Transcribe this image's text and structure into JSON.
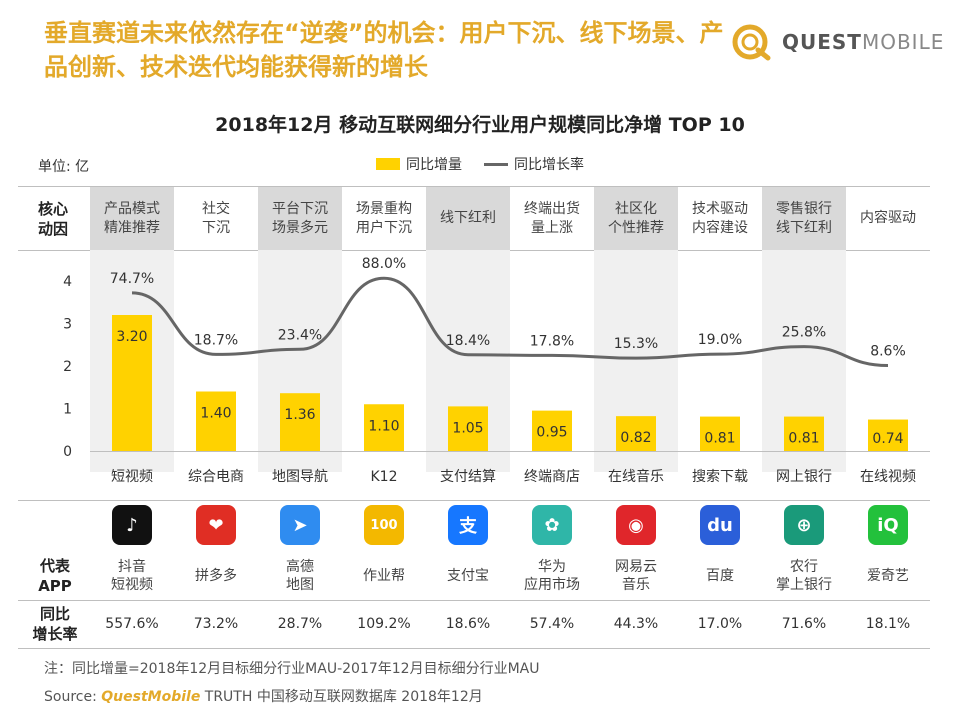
{
  "headline": "垂直赛道未来依然存在“逆袭”的机会：用户下沉、线下场景、产品创新、技术迭代均能获得新的增长",
  "brand": {
    "part1": "QUEST",
    "part2": "MOBILE",
    "color": "#e3a92a"
  },
  "unit_label": "单位: 亿",
  "driver_header": "核心\n动因",
  "app_header": "代表\nAPP",
  "rate_header": "同比\n增长率",
  "drivers": [
    {
      "text": "产品模式\n精准推荐",
      "shaded": true
    },
    {
      "text": "社交\n下沉",
      "shaded": false
    },
    {
      "text": "平台下沉\n场景多元",
      "shaded": true
    },
    {
      "text": "场景重构\n用户下沉",
      "shaded": false
    },
    {
      "text": "线下红利",
      "shaded": true
    },
    {
      "text": "终端出货\n量上涨",
      "shaded": false
    },
    {
      "text": "社区化\n个性推荐",
      "shaded": true
    },
    {
      "text": "技术驱动\n内容建设",
      "shaded": false
    },
    {
      "text": "零售银行\n线下红利",
      "shaded": true
    },
    {
      "text": "内容驱动",
      "shaded": false
    }
  ],
  "apps": [
    {
      "name": "抖音\n短视频",
      "rate": "557.6%",
      "icon": "douyin-icon",
      "color": "#111111",
      "glyph": "♪"
    },
    {
      "name": "拼多多",
      "rate": "73.2%",
      "icon": "pinduoduo-icon",
      "color": "#e02e24",
      "glyph": "❤"
    },
    {
      "name": "高德\n地图",
      "rate": "28.7%",
      "icon": "amap-icon",
      "color": "#2f8cf0",
      "glyph": "➤"
    },
    {
      "name": "作业帮",
      "rate": "109.2%",
      "icon": "zuoyebang-icon",
      "color": "#f3b800",
      "glyph": "100"
    },
    {
      "name": "支付宝",
      "rate": "18.6%",
      "icon": "alipay-icon",
      "color": "#1677ff",
      "glyph": "支"
    },
    {
      "name": "华为\n应用市场",
      "rate": "57.4%",
      "icon": "huawei-appgallery-icon",
      "color": "#2fb6a8",
      "glyph": "✿"
    },
    {
      "name": "网易云\n音乐",
      "rate": "44.3%",
      "icon": "netease-music-icon",
      "color": "#e0262b",
      "glyph": "◉"
    },
    {
      "name": "百度",
      "rate": "17.0%",
      "icon": "baidu-icon",
      "color": "#2b5fd9",
      "glyph": "du"
    },
    {
      "name": "农行\n掌上银行",
      "rate": "71.6%",
      "icon": "abc-bank-icon",
      "color": "#1a9a7a",
      "glyph": "⊕"
    },
    {
      "name": "爱奇艺",
      "rate": "18.1%",
      "icon": "iqiyi-icon",
      "color": "#23c13c",
      "glyph": "iQ"
    }
  ],
  "footnote": "注：同比增量=2018年12月目标细分行业MAU-2017年12月目标细分行业MAU",
  "source": {
    "prefix": "Source: ",
    "brand": "QuestMobile",
    "rest": " TRUTH 中国移动互联网数据库 2018年12月"
  },
  "chart_data": {
    "type": "bar",
    "title": "2018年12月 移动互联网细分行业用户规模同比净增 TOP 10",
    "categories": [
      "短视频",
      "综合电商",
      "地图导航",
      "K12",
      "支付结算",
      "终端商店",
      "在线音乐",
      "搜索下载",
      "网上银行",
      "在线视频"
    ],
    "ylim": [
      0,
      4
    ],
    "yticks": [
      0,
      1,
      2,
      3,
      4
    ],
    "bar_color": "#ffd200",
    "line_color": "#666666",
    "series": [
      {
        "name": "同比增量",
        "type": "bar",
        "values": [
          3.2,
          1.4,
          1.36,
          1.1,
          1.05,
          0.95,
          0.82,
          0.81,
          0.81,
          0.74
        ],
        "labels": [
          "3.20",
          "1.40",
          "1.36",
          "1.10",
          "1.05",
          "0.95",
          "0.82",
          "0.81",
          "0.81",
          "0.74"
        ]
      },
      {
        "name": "同比增长率",
        "type": "line",
        "values": [
          74.7,
          18.7,
          23.4,
          88.0,
          18.4,
          17.8,
          15.3,
          19.0,
          25.8,
          8.6
        ],
        "labels": [
          "74.7%",
          "18.7%",
          "23.4%",
          "88.0%",
          "18.4%",
          "17.8%",
          "15.3%",
          "19.0%",
          "25.8%",
          "8.6%"
        ]
      }
    ]
  }
}
